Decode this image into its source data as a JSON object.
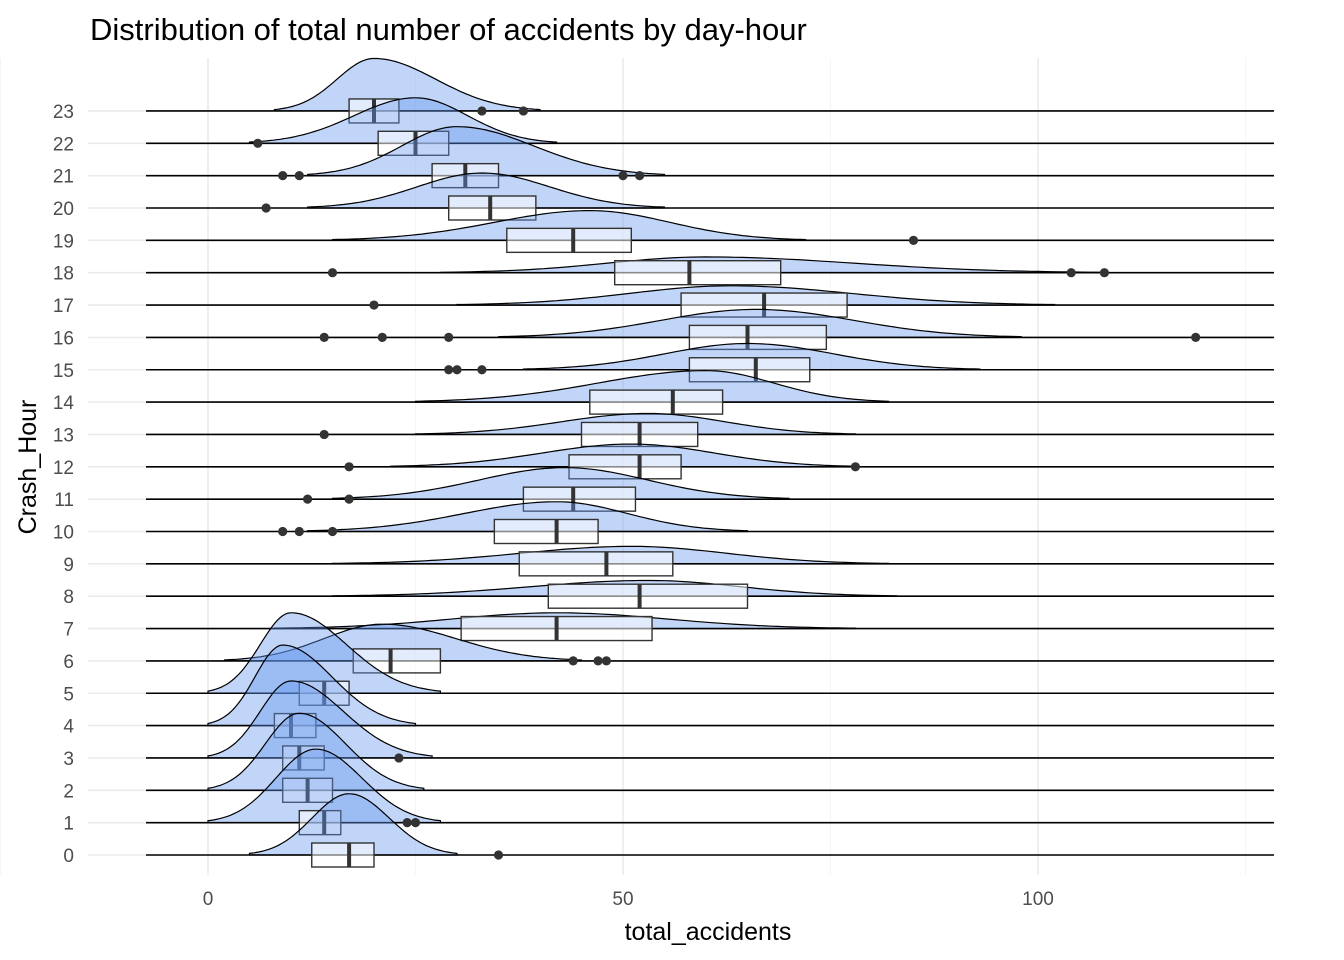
{
  "chart_data": {
    "type": "ridgeline_boxplot",
    "title": "Distribution of total number of accidents by day-hour",
    "xlabel": "total_accidents",
    "ylabel": "Crash_Hour",
    "xlim": [
      -15,
      130
    ],
    "x_ticks": [
      0,
      50,
      100
    ],
    "grid": true,
    "colors": {
      "fill": "#6495ED",
      "outline": "#000000",
      "box": "#333333"
    },
    "series": [
      {
        "hour": "0",
        "density": {
          "from": 5,
          "to": 30,
          "mode": 17,
          "peak": 1.75
        },
        "box": {
          "q1": 12.5,
          "median": 17,
          "q3": 20
        },
        "outliers": [
          35
        ]
      },
      {
        "hour": "1",
        "density": {
          "from": 0,
          "to": 28,
          "mode": 13,
          "peak": 2.1
        },
        "box": {
          "q1": 11,
          "median": 14,
          "q3": 16
        },
        "outliers": [
          24,
          25
        ]
      },
      {
        "hour": "2",
        "density": {
          "from": 0,
          "to": 26,
          "mode": 11,
          "peak": 2.2
        },
        "box": {
          "q1": 9,
          "median": 12,
          "q3": 15
        },
        "outliers": []
      },
      {
        "hour": "3",
        "density": {
          "from": 0,
          "to": 27,
          "mode": 10,
          "peak": 2.2
        },
        "box": {
          "q1": 9,
          "median": 11,
          "q3": 14
        },
        "outliers": [
          23
        ]
      },
      {
        "hour": "4",
        "density": {
          "from": 0,
          "to": 25,
          "mode": 9,
          "peak": 2.3
        },
        "box": {
          "q1": 8,
          "median": 10,
          "q3": 13
        },
        "outliers": []
      },
      {
        "hour": "5",
        "density": {
          "from": 0,
          "to": 28,
          "mode": 10,
          "peak": 2.3
        },
        "box": {
          "q1": 11,
          "median": 14,
          "q3": 17
        },
        "outliers": []
      },
      {
        "hour": "6",
        "density": {
          "from": 2,
          "to": 45,
          "mode": 21,
          "peak": 1.05
        },
        "box": {
          "q1": 17.5,
          "median": 22,
          "q3": 28
        },
        "outliers": [
          44,
          47,
          48
        ]
      },
      {
        "hour": "7",
        "density": {
          "from": 8,
          "to": 78,
          "mode": 42,
          "peak": 0.45
        },
        "box": {
          "q1": 30.5,
          "median": 42,
          "q3": 53.5
        },
        "outliers": []
      },
      {
        "hour": "8",
        "density": {
          "from": 15,
          "to": 83,
          "mode": 53,
          "peak": 0.45
        },
        "box": {
          "q1": 41,
          "median": 52,
          "q3": 65
        },
        "outliers": []
      },
      {
        "hour": "9",
        "density": {
          "from": 15,
          "to": 82,
          "mode": 51,
          "peak": 0.5
        },
        "box": {
          "q1": 37.5,
          "median": 48,
          "q3": 56
        },
        "outliers": []
      },
      {
        "hour": "10",
        "density": {
          "from": 12,
          "to": 65,
          "mode": 42,
          "peak": 0.85
        },
        "box": {
          "q1": 34.5,
          "median": 42,
          "q3": 47
        },
        "outliers": [
          9,
          11,
          15
        ]
      },
      {
        "hour": "11",
        "density": {
          "from": 15,
          "to": 70,
          "mode": 43,
          "peak": 0.9
        },
        "box": {
          "q1": 38,
          "median": 44,
          "q3": 51.5
        },
        "outliers": [
          12,
          17
        ]
      },
      {
        "hour": "12",
        "density": {
          "from": 22,
          "to": 78,
          "mode": 51,
          "peak": 0.65
        },
        "box": {
          "q1": 43.5,
          "median": 52,
          "q3": 57
        },
        "outliers": [
          17,
          78
        ]
      },
      {
        "hour": "13",
        "density": {
          "from": 25,
          "to": 78,
          "mode": 53,
          "peak": 0.6
        },
        "box": {
          "q1": 45,
          "median": 52,
          "q3": 59
        },
        "outliers": [
          14
        ]
      },
      {
        "hour": "14",
        "density": {
          "from": 25,
          "to": 82,
          "mode": 60,
          "peak": 0.9
        },
        "box": {
          "q1": 46,
          "median": 56,
          "q3": 62
        },
        "outliers": []
      },
      {
        "hour": "15",
        "density": {
          "from": 38,
          "to": 93,
          "mode": 65,
          "peak": 0.75
        },
        "box": {
          "q1": 58,
          "median": 66,
          "q3": 72.5
        },
        "outliers": [
          29,
          30,
          33
        ]
      },
      {
        "hour": "16",
        "density": {
          "from": 35,
          "to": 98,
          "mode": 66,
          "peak": 0.8
        },
        "box": {
          "q1": 58,
          "median": 65,
          "q3": 74.5
        },
        "outliers": [
          14,
          21,
          29,
          119
        ]
      },
      {
        "hour": "17",
        "density": {
          "from": 30,
          "to": 102,
          "mode": 63,
          "peak": 0.55
        },
        "box": {
          "q1": 57,
          "median": 67,
          "q3": 77
        },
        "outliers": [
          20
        ]
      },
      {
        "hour": "18",
        "density": {
          "from": 28,
          "to": 108,
          "mode": 60,
          "peak": 0.45
        },
        "box": {
          "q1": 49,
          "median": 58,
          "q3": 69
        },
        "outliers": [
          15,
          104,
          108
        ]
      },
      {
        "hour": "19",
        "density": {
          "from": 15,
          "to": 72,
          "mode": 46,
          "peak": 0.85
        },
        "box": {
          "q1": 36,
          "median": 44,
          "q3": 51
        },
        "outliers": [
          85
        ]
      },
      {
        "hour": "20",
        "density": {
          "from": 12,
          "to": 55,
          "mode": 33,
          "peak": 1.0
        },
        "box": {
          "q1": 29,
          "median": 34,
          "q3": 39.5
        },
        "outliers": [
          7
        ]
      },
      {
        "hour": "21",
        "density": {
          "from": 12,
          "to": 55,
          "mode": 30,
          "peak": 1.4
        },
        "box": {
          "q1": 27,
          "median": 31,
          "q3": 35
        },
        "outliers": [
          9,
          11,
          50,
          52
        ]
      },
      {
        "hour": "22",
        "density": {
          "from": 5,
          "to": 42,
          "mode": 25,
          "peak": 1.3
        },
        "box": {
          "q1": 20.5,
          "median": 25,
          "q3": 29
        },
        "outliers": [
          6
        ]
      },
      {
        "hour": "23",
        "density": {
          "from": 8,
          "to": 40,
          "mode": 20,
          "peak": 1.5
        },
        "box": {
          "q1": 17,
          "median": 20,
          "q3": 23
        },
        "outliers": [
          33,
          38
        ]
      }
    ]
  }
}
